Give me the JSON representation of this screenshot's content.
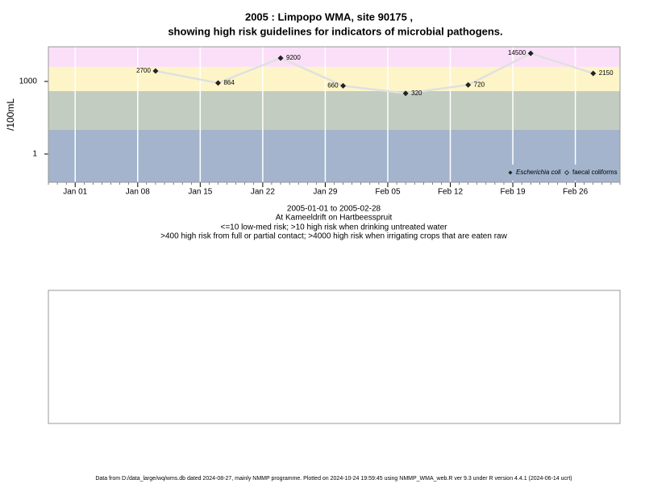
{
  "chart_data": {
    "type": "line",
    "title": "2005 : Limpopo WMA, site 90175 ,",
    "title2": "showing high risk guidelines for indicators of microbial pathogens.",
    "ylabel": "/100mL",
    "log_y": true,
    "x": [
      "2005-01-10",
      "2005-01-17",
      "2005-01-24",
      "2005-01-31",
      "2005-02-07",
      "2005-02-14",
      "2005-02-21",
      "2005-02-28"
    ],
    "series": [
      {
        "name": "Escherichia coli",
        "color": "#222222",
        "line_color": "#e0e0e0",
        "values": [
          2700,
          864,
          9200,
          660,
          320,
          720,
          14500,
          2150
        ]
      }
    ],
    "legend_extra": "faecal coliforms",
    "xlim": [
      "2004-12-29",
      "2005-03-03"
    ],
    "xticks": [
      {
        "value": "2005-01-01",
        "label": "Jan 01"
      },
      {
        "value": "2005-01-08",
        "label": "Jan 08"
      },
      {
        "value": "2005-01-15",
        "label": "Jan 15"
      },
      {
        "value": "2005-01-22",
        "label": "Jan 22"
      },
      {
        "value": "2005-01-29",
        "label": "Jan 29"
      },
      {
        "value": "2005-02-05",
        "label": "Feb 05"
      },
      {
        "value": "2005-02-12",
        "label": "Feb 12"
      },
      {
        "value": "2005-02-19",
        "label": "Feb 19"
      },
      {
        "value": "2005-02-26",
        "label": "Feb 26"
      }
    ],
    "ylim": [
      0.068,
      27000
    ],
    "yticks": [
      1,
      1000
    ],
    "grid": true,
    "legend_position": "bottom-right",
    "bands": [
      {
        "to": 10,
        "color": "#a3b4cc"
      },
      {
        "from": 10,
        "to": 400,
        "color": "#c3ccc0"
      },
      {
        "from": 400,
        "to": 4000,
        "color": "#fdf5c8"
      },
      {
        "from": 4000,
        "color": "#fbdff8"
      }
    ],
    "captions": [
      "2005-01-01 to 2005-02-28",
      "At Kameeldrift on Hartbeesspruit",
      "<=10 low-med risk; >10 high risk when drinking untreated water",
      ">400 high risk from full or partial contact; >4000 high risk when irrigating crops that are eaten raw"
    ],
    "footer": "Data from D:/data_large/wq/wms.db dated 2024-08-27, mainly NMMP programme. Plotted on 2024-10-24 19:59:45 using NMMP_WMA_web.R ver 9.3 under R version 4.4.1 (2024-06-14 ucrt)"
  }
}
